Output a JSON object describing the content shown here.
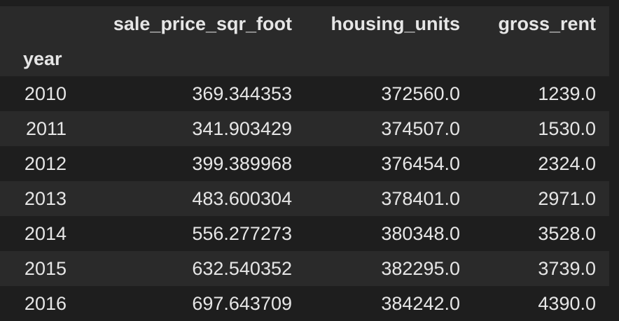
{
  "table": {
    "columns": [
      "sale_price_sqr_foot",
      "housing_units",
      "gross_rent"
    ],
    "index_name": "year",
    "rows": [
      {
        "year": "2010",
        "sale_price_sqr_foot": "369.344353",
        "housing_units": "372560.0",
        "gross_rent": "1239.0"
      },
      {
        "year": "2011",
        "sale_price_sqr_foot": "341.903429",
        "housing_units": "374507.0",
        "gross_rent": "1530.0"
      },
      {
        "year": "2012",
        "sale_price_sqr_foot": "399.389968",
        "housing_units": "376454.0",
        "gross_rent": "2324.0"
      },
      {
        "year": "2013",
        "sale_price_sqr_foot": "483.600304",
        "housing_units": "378401.0",
        "gross_rent": "2971.0"
      },
      {
        "year": "2014",
        "sale_price_sqr_foot": "556.277273",
        "housing_units": "380348.0",
        "gross_rent": "3528.0"
      },
      {
        "year": "2015",
        "sale_price_sqr_foot": "632.540352",
        "housing_units": "382295.0",
        "gross_rent": "3739.0"
      },
      {
        "year": "2016",
        "sale_price_sqr_foot": "697.643709",
        "housing_units": "384242.0",
        "gross_rent": "4390.0"
      }
    ]
  },
  "colors": {
    "background": "#1e1e1e",
    "stripe": "#2a2a2a",
    "text": "#e6e6e6"
  }
}
